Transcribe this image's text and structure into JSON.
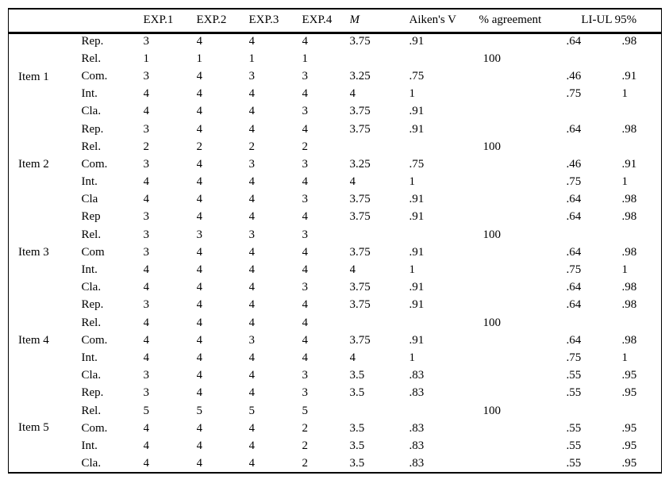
{
  "table": {
    "column_headers": {
      "exp1": "EXP.1",
      "exp2": "EXP.2",
      "exp3": "EXP.3",
      "exp4": "EXP.4",
      "mean": "M",
      "aikens_v": "Aiken's V",
      "agreement": "% agreement",
      "li_ul": "LI-UL 95%"
    },
    "items": [
      {
        "label": "Item 1",
        "rows": [
          {
            "criterion": "Rep.",
            "scores": [
              "3",
              "4",
              "4",
              "4"
            ],
            "m": "3.75",
            "v": ".91",
            "agreement": "",
            "li": ".64",
            "ul": ".98"
          },
          {
            "criterion": "Rel.",
            "scores": [
              "1",
              "1",
              "1",
              "1"
            ],
            "m": "",
            "v": "",
            "agreement": "100",
            "li": "",
            "ul": ""
          },
          {
            "criterion": "Com.",
            "scores": [
              "3",
              "4",
              "3",
              "3"
            ],
            "m": "3.25",
            "v": ".75",
            "agreement": "",
            "li": ".46",
            "ul": ".91"
          },
          {
            "criterion": "Int.",
            "scores": [
              "4",
              "4",
              "4",
              "4"
            ],
            "m": "4",
            "v": "1",
            "agreement": "",
            "li": ".75",
            "ul": "1"
          },
          {
            "criterion": "Cla.",
            "scores": [
              "4",
              "4",
              "4",
              "3"
            ],
            "m": "3.75",
            "v": ".91",
            "agreement": "",
            "li": "",
            "ul": ""
          }
        ]
      },
      {
        "label": "Item 2",
        "rows": [
          {
            "criterion": "Rep.",
            "scores": [
              "3",
              "4",
              "4",
              "4"
            ],
            "m": "3.75",
            "v": ".91",
            "agreement": "",
            "li": ".64",
            "ul": ".98"
          },
          {
            "criterion": "Rel.",
            "scores": [
              "2",
              "2",
              "2",
              "2"
            ],
            "m": "",
            "v": "",
            "agreement": "100",
            "li": "",
            "ul": ""
          },
          {
            "criterion": "Com.",
            "scores": [
              "3",
              "4",
              "3",
              "3"
            ],
            "m": "3.25",
            "v": ".75",
            "agreement": "",
            "li": ".46",
            "ul": ".91"
          },
          {
            "criterion": "Int.",
            "scores": [
              "4",
              "4",
              "4",
              "4"
            ],
            "m": "4",
            "v": "1",
            "agreement": "",
            "li": ".75",
            "ul": "1"
          },
          {
            "criterion": "Cla",
            "scores": [
              "4",
              "4",
              "4",
              "3"
            ],
            "m": "3.75",
            "v": ".91",
            "agreement": "",
            "li": ".64",
            "ul": ".98"
          }
        ]
      },
      {
        "label": "Item 3",
        "rows": [
          {
            "criterion": "Rep",
            "scores": [
              "3",
              "4",
              "4",
              "4"
            ],
            "m": "3.75",
            "v": ".91",
            "agreement": "",
            "li": ".64",
            "ul": ".98"
          },
          {
            "criterion": "Rel.",
            "scores": [
              "3",
              "3",
              "3",
              "3"
            ],
            "m": "",
            "v": "",
            "agreement": "100",
            "li": "",
            "ul": ""
          },
          {
            "criterion": "Com",
            "scores": [
              "3",
              "4",
              "4",
              "4"
            ],
            "m": "3.75",
            "v": ".91",
            "agreement": "",
            "li": ".64",
            "ul": ".98"
          },
          {
            "criterion": "Int.",
            "scores": [
              "4",
              "4",
              "4",
              "4"
            ],
            "m": "4",
            "v": "1",
            "agreement": "",
            "li": ".75",
            "ul": "1"
          },
          {
            "criterion": "Cla.",
            "scores": [
              "4",
              "4",
              "4",
              "3"
            ],
            "m": "3.75",
            "v": ".91",
            "agreement": "",
            "li": ".64",
            "ul": ".98"
          }
        ]
      },
      {
        "label": "Item 4",
        "rows": [
          {
            "criterion": "Rep.",
            "scores": [
              "3",
              "4",
              "4",
              "4"
            ],
            "m": "3.75",
            "v": ".91",
            "agreement": "",
            "li": ".64",
            "ul": ".98"
          },
          {
            "criterion": "Rel.",
            "scores": [
              "4",
              "4",
              "4",
              "4"
            ],
            "m": "",
            "v": "",
            "agreement": "100",
            "li": "",
            "ul": ""
          },
          {
            "criterion": "Com.",
            "scores": [
              "4",
              "4",
              "3",
              "4"
            ],
            "m": "3.75",
            "v": ".91",
            "agreement": "",
            "li": ".64",
            "ul": ".98"
          },
          {
            "criterion": "Int.",
            "scores": [
              "4",
              "4",
              "4",
              "4"
            ],
            "m": "4",
            "v": "1",
            "agreement": "",
            "li": ".75",
            "ul": "1"
          },
          {
            "criterion": "Cla.",
            "scores": [
              "3",
              "4",
              "4",
              "3"
            ],
            "m": "3.5",
            "v": ".83",
            "agreement": "",
            "li": ".55",
            "ul": ".95"
          }
        ]
      },
      {
        "label": "Item 5",
        "rows": [
          {
            "criterion": "Rep.",
            "scores": [
              "3",
              "4",
              "4",
              "3"
            ],
            "m": "3.5",
            "v": ".83",
            "agreement": "",
            "li": ".55",
            "ul": ".95"
          },
          {
            "criterion": "Rel.",
            "scores": [
              "5",
              "5",
              "5",
              "5"
            ],
            "m": "",
            "v": "",
            "agreement": "100",
            "li": "",
            "ul": ""
          },
          {
            "criterion": "Com.",
            "scores": [
              "4",
              "4",
              "4",
              "2"
            ],
            "m": "3.5",
            "v": ".83",
            "agreement": "",
            "li": ".55",
            "ul": ".95"
          },
          {
            "criterion": "Int.",
            "scores": [
              "4",
              "4",
              "4",
              "2"
            ],
            "m": "3.5",
            "v": ".83",
            "agreement": "",
            "li": ".55",
            "ul": ".95"
          },
          {
            "criterion": "Cla.",
            "scores": [
              "4",
              "4",
              "4",
              "2"
            ],
            "m": "3.5",
            "v": ".83",
            "agreement": "",
            "li": ".55",
            "ul": ".95"
          }
        ]
      }
    ]
  }
}
